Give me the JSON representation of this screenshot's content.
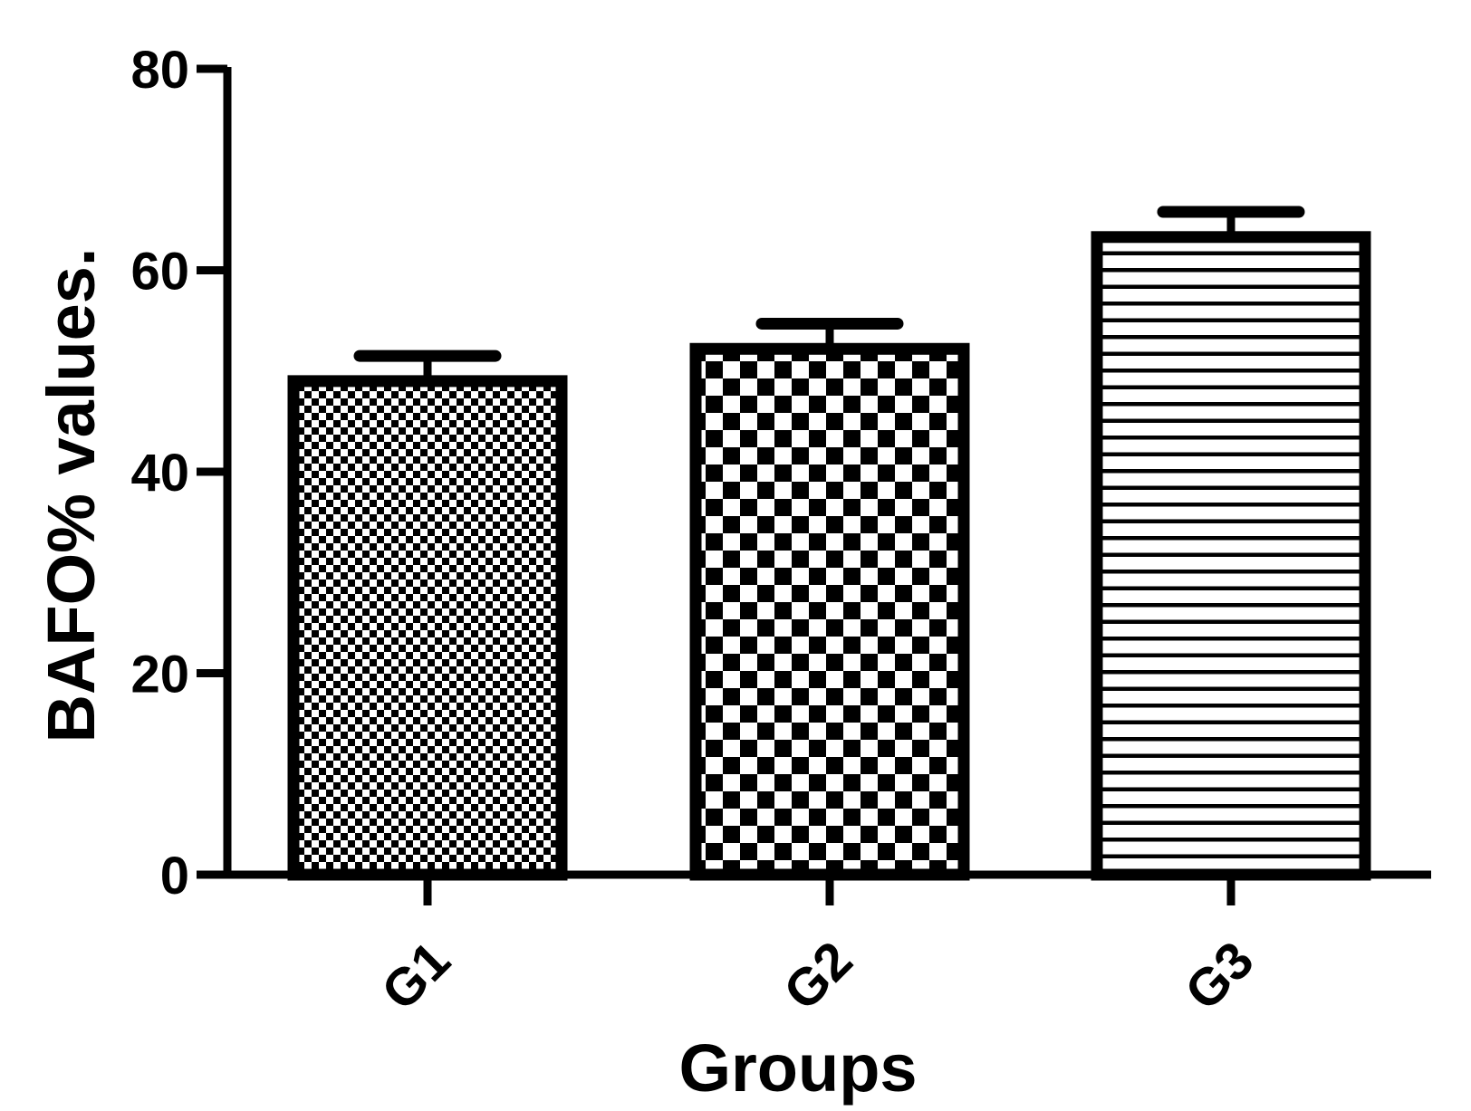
{
  "chart_data": {
    "type": "bar",
    "title": "",
    "xlabel": "Groups",
    "ylabel": "BAFO% values.",
    "categories": [
      "G1",
      "G2",
      "G3"
    ],
    "values": [
      49,
      52.2,
      63.3
    ],
    "error": [
      2.5,
      2.5,
      2.5
    ],
    "ylim": [
      0,
      80
    ],
    "yticks": [
      0,
      20,
      40,
      60,
      80
    ],
    "ytick_labels": [
      "0",
      "20",
      "40",
      "60",
      "80"
    ],
    "patterns": [
      "fine-checkerboard",
      "coarse-checkerboard",
      "horizontal-lines"
    ],
    "grid": false,
    "legend": "none",
    "colors": {
      "bar_stroke": "#000000",
      "bar_fill": "#ffffff",
      "axis": "#000000"
    }
  }
}
